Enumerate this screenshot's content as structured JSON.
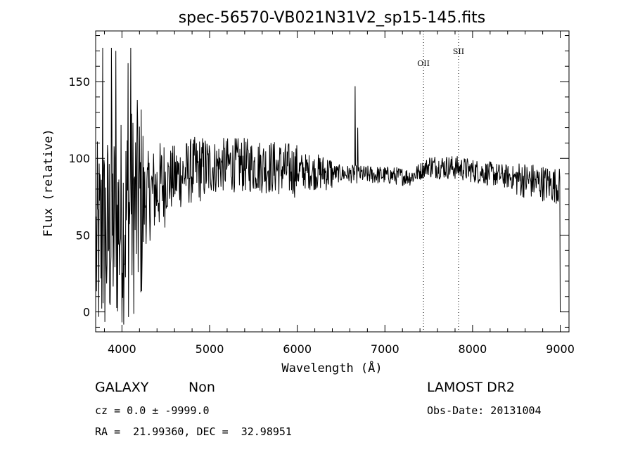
{
  "chart_data": {
    "type": "line",
    "title": "spec-56570-VB021N31V2_sp15-145.fits",
    "xlabel": "Wavelength (Å)",
    "ylabel": "Flux (relative)",
    "xlim": [
      3700,
      9100
    ],
    "ylim": [
      -13,
      183
    ],
    "xticks": [
      4000,
      5000,
      6000,
      7000,
      8000,
      9000
    ],
    "yticks": [
      0,
      50,
      100,
      150
    ],
    "x_minor_step": 200,
    "y_minor_step": 10,
    "grid": false,
    "continuum": [
      [
        3700,
        40
      ],
      [
        3900,
        55
      ],
      [
        4200,
        70
      ],
      [
        4500,
        85
      ],
      [
        4800,
        92
      ],
      [
        5200,
        96
      ],
      [
        5600,
        95
      ],
      [
        6000,
        92
      ],
      [
        6500,
        90
      ],
      [
        7000,
        89
      ],
      [
        7300,
        88
      ],
      [
        7500,
        95
      ],
      [
        7800,
        94
      ],
      [
        8200,
        90
      ],
      [
        8600,
        86
      ],
      [
        9000,
        82
      ]
    ],
    "emission_peaks": [
      {
        "x": 6660,
        "y": 147
      },
      {
        "x": 6690,
        "y": 120
      },
      {
        "x": 4100,
        "y": 172
      },
      {
        "x": 3780,
        "y": 172
      },
      {
        "x": 3880,
        "y": 172
      },
      {
        "x": 3930,
        "y": 170
      },
      {
        "x": 4070,
        "y": 162
      },
      {
        "x": 4180,
        "y": 122
      }
    ],
    "spectral_lines": [
      {
        "name": "OII",
        "x": 7440,
        "label_y": 160
      },
      {
        "name": "SII",
        "x": 7840,
        "label_y": 168
      }
    ]
  },
  "info": {
    "object_class": "GALAXY",
    "subclass": "Non",
    "survey": "LAMOST DR2",
    "redshift": "cz = 0.0 ± -9999.0",
    "obs_date": "Obs-Date: 20131004",
    "coords": "RA =  21.99360, DEC =  32.98951"
  }
}
